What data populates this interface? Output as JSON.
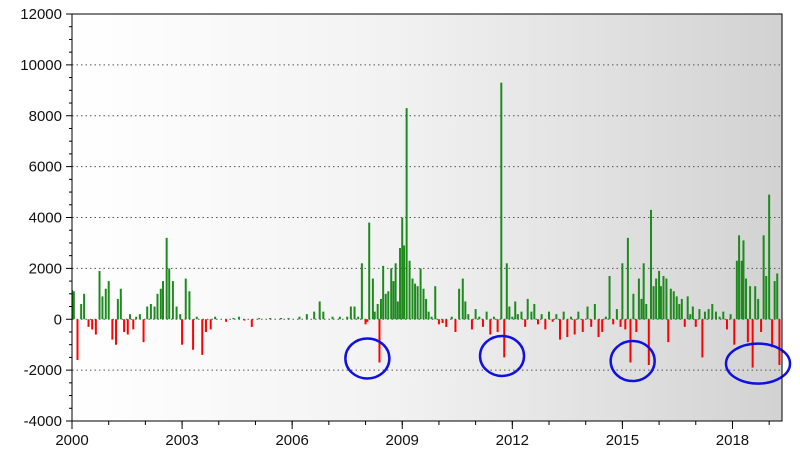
{
  "chart_data": {
    "type": "bar",
    "title": "",
    "xlabel": "",
    "ylabel": "",
    "xlim": [
      2000.0,
      2019.35
    ],
    "ylim": [
      -4000,
      12000
    ],
    "x_ticks": [
      2000,
      2003,
      2006,
      2009,
      2012,
      2015,
      2018
    ],
    "x_tick_labels": [
      "2000",
      "2003",
      "2006",
      "2009",
      "2012",
      "2015",
      "2018"
    ],
    "y_ticks": [
      -4000,
      -2000,
      0,
      2000,
      4000,
      6000,
      8000,
      10000,
      12000
    ],
    "y_tick_labels": [
      "-4000",
      "-2000",
      "0",
      "2000",
      "4000",
      "6000",
      "8000",
      "10000",
      "12000"
    ],
    "grid": "horizontal dotted",
    "legend": "none",
    "colors": {
      "positive": "#1e8a1e",
      "negative": "#ff0000",
      "annotation": "#1010e0",
      "background_left": "#ffffff",
      "background_right": "#d2d2d2"
    },
    "series": [
      {
        "values": [
          [
            2000.0,
            1150
          ],
          [
            2000.05,
            1100
          ],
          [
            2000.15,
            -1600
          ],
          [
            2000.25,
            600
          ],
          [
            2000.33,
            1000
          ],
          [
            2000.45,
            -300
          ],
          [
            2000.55,
            -400
          ],
          [
            2000.65,
            -600
          ],
          [
            2000.75,
            1900
          ],
          [
            2000.83,
            900
          ],
          [
            2000.92,
            1200
          ],
          [
            2001.0,
            1500
          ],
          [
            2001.1,
            -800
          ],
          [
            2001.2,
            -1000
          ],
          [
            2001.25,
            800
          ],
          [
            2001.33,
            1200
          ],
          [
            2001.42,
            -500
          ],
          [
            2001.52,
            -600
          ],
          [
            2001.58,
            200
          ],
          [
            2001.67,
            -400
          ],
          [
            2001.75,
            100
          ],
          [
            2001.85,
            200
          ],
          [
            2001.95,
            -900
          ],
          [
            2002.05,
            500
          ],
          [
            2002.15,
            600
          ],
          [
            2002.25,
            500
          ],
          [
            2002.33,
            1000
          ],
          [
            2002.42,
            1200
          ],
          [
            2002.48,
            1500
          ],
          [
            2002.58,
            3200
          ],
          [
            2002.65,
            2000
          ],
          [
            2002.75,
            1500
          ],
          [
            2002.85,
            500
          ],
          [
            2002.95,
            200
          ],
          [
            2003.0,
            -1000
          ],
          [
            2003.1,
            1600
          ],
          [
            2003.2,
            1100
          ],
          [
            2003.3,
            -1200
          ],
          [
            2003.4,
            100
          ],
          [
            2003.55,
            -1400
          ],
          [
            2003.65,
            -500
          ],
          [
            2003.78,
            -400
          ],
          [
            2003.9,
            100
          ],
          [
            2004.2,
            -100
          ],
          [
            2004.4,
            50
          ],
          [
            2004.55,
            100
          ],
          [
            2004.7,
            -50
          ],
          [
            2004.9,
            -300
          ],
          [
            2005.1,
            50
          ],
          [
            2005.4,
            50
          ],
          [
            2005.7,
            50
          ],
          [
            2005.9,
            50
          ],
          [
            2006.2,
            100
          ],
          [
            2006.4,
            200
          ],
          [
            2006.6,
            300
          ],
          [
            2006.75,
            700
          ],
          [
            2006.85,
            300
          ],
          [
            2007.1,
            100
          ],
          [
            2007.3,
            100
          ],
          [
            2007.5,
            100
          ],
          [
            2007.6,
            500
          ],
          [
            2007.7,
            500
          ],
          [
            2007.8,
            100
          ],
          [
            2007.9,
            2200
          ],
          [
            2008.0,
            -200
          ],
          [
            2008.05,
            -100
          ],
          [
            2008.1,
            3800
          ],
          [
            2008.2,
            1600
          ],
          [
            2008.25,
            300
          ],
          [
            2008.33,
            600
          ],
          [
            2008.38,
            -1700
          ],
          [
            2008.42,
            800
          ],
          [
            2008.48,
            2100
          ],
          [
            2008.55,
            1000
          ],
          [
            2008.62,
            1100
          ],
          [
            2008.7,
            2000
          ],
          [
            2008.76,
            1500
          ],
          [
            2008.82,
            2200
          ],
          [
            2008.88,
            700
          ],
          [
            2008.94,
            2800
          ],
          [
            2009.0,
            4000
          ],
          [
            2009.05,
            2900
          ],
          [
            2009.12,
            8300
          ],
          [
            2009.2,
            2300
          ],
          [
            2009.28,
            1600
          ],
          [
            2009.35,
            1400
          ],
          [
            2009.42,
            1300
          ],
          [
            2009.5,
            2000
          ],
          [
            2009.58,
            1200
          ],
          [
            2009.65,
            800
          ],
          [
            2009.72,
            300
          ],
          [
            2009.8,
            100
          ],
          [
            2009.9,
            1300
          ],
          [
            2010.0,
            -200
          ],
          [
            2010.1,
            -150
          ],
          [
            2010.2,
            -300
          ],
          [
            2010.35,
            100
          ],
          [
            2010.45,
            -500
          ],
          [
            2010.55,
            1200
          ],
          [
            2010.65,
            1600
          ],
          [
            2010.72,
            700
          ],
          [
            2010.8,
            200
          ],
          [
            2010.9,
            -400
          ],
          [
            2011.0,
            400
          ],
          [
            2011.1,
            100
          ],
          [
            2011.2,
            -300
          ],
          [
            2011.3,
            300
          ],
          [
            2011.4,
            -600
          ],
          [
            2011.5,
            100
          ],
          [
            2011.6,
            -500
          ],
          [
            2011.7,
            9300
          ],
          [
            2011.78,
            -1500
          ],
          [
            2011.85,
            2200
          ],
          [
            2011.92,
            500
          ],
          [
            2012.0,
            100
          ],
          [
            2012.08,
            700
          ],
          [
            2012.15,
            200
          ],
          [
            2012.25,
            300
          ],
          [
            2012.35,
            -300
          ],
          [
            2012.42,
            800
          ],
          [
            2012.52,
            300
          ],
          [
            2012.6,
            600
          ],
          [
            2012.7,
            -200
          ],
          [
            2012.8,
            200
          ],
          [
            2012.9,
            -400
          ],
          [
            2013.0,
            300
          ],
          [
            2013.1,
            -100
          ],
          [
            2013.2,
            200
          ],
          [
            2013.3,
            -800
          ],
          [
            2013.4,
            300
          ],
          [
            2013.5,
            -700
          ],
          [
            2013.6,
            100
          ],
          [
            2013.7,
            -600
          ],
          [
            2013.8,
            300
          ],
          [
            2013.92,
            -500
          ],
          [
            2014.05,
            500
          ],
          [
            2014.15,
            -300
          ],
          [
            2014.25,
            600
          ],
          [
            2014.35,
            -700
          ],
          [
            2014.45,
            -500
          ],
          [
            2014.55,
            100
          ],
          [
            2014.65,
            1700
          ],
          [
            2014.75,
            -200
          ],
          [
            2014.85,
            400
          ],
          [
            2014.95,
            -300
          ],
          [
            2015.0,
            2200
          ],
          [
            2015.08,
            -400
          ],
          [
            2015.15,
            3200
          ],
          [
            2015.22,
            -1700
          ],
          [
            2015.3,
            1000
          ],
          [
            2015.38,
            -500
          ],
          [
            2015.45,
            1600
          ],
          [
            2015.52,
            800
          ],
          [
            2015.58,
            2200
          ],
          [
            2015.65,
            600
          ],
          [
            2015.72,
            -1800
          ],
          [
            2015.78,
            4300
          ],
          [
            2015.85,
            1300
          ],
          [
            2015.92,
            1600
          ],
          [
            2016.0,
            1900
          ],
          [
            2016.05,
            1300
          ],
          [
            2016.12,
            1700
          ],
          [
            2016.2,
            1600
          ],
          [
            2016.25,
            -900
          ],
          [
            2016.32,
            1200
          ],
          [
            2016.4,
            1100
          ],
          [
            2016.48,
            900
          ],
          [
            2016.55,
            600
          ],
          [
            2016.62,
            800
          ],
          [
            2016.7,
            -300
          ],
          [
            2016.78,
            900
          ],
          [
            2016.85,
            200
          ],
          [
            2016.92,
            500
          ],
          [
            2017.0,
            -300
          ],
          [
            2017.1,
            400
          ],
          [
            2017.18,
            -1500
          ],
          [
            2017.25,
            300
          ],
          [
            2017.35,
            400
          ],
          [
            2017.45,
            600
          ],
          [
            2017.55,
            300
          ],
          [
            2017.65,
            100
          ],
          [
            2017.75,
            300
          ],
          [
            2017.85,
            -400
          ],
          [
            2017.95,
            200
          ],
          [
            2018.05,
            -1000
          ],
          [
            2018.12,
            2300
          ],
          [
            2018.18,
            3300
          ],
          [
            2018.25,
            2300
          ],
          [
            2018.3,
            3100
          ],
          [
            2018.37,
            1600
          ],
          [
            2018.42,
            -900
          ],
          [
            2018.48,
            1300
          ],
          [
            2018.55,
            -1900
          ],
          [
            2018.62,
            1300
          ],
          [
            2018.7,
            800
          ],
          [
            2018.78,
            -500
          ],
          [
            2018.85,
            3300
          ],
          [
            2018.92,
            1700
          ],
          [
            2019.0,
            4900
          ],
          [
            2019.08,
            -1100
          ],
          [
            2019.15,
            1500
          ],
          [
            2019.22,
            1800
          ],
          [
            2019.28,
            -1800
          ]
        ]
      }
    ],
    "annotations": [
      {
        "type": "circle",
        "x": 2008.05,
        "y": -1700
      },
      {
        "type": "circle",
        "x": 2011.72,
        "y": -1600
      },
      {
        "type": "circle",
        "x": 2015.28,
        "y": -1800
      },
      {
        "type": "circle",
        "x": 2019.0,
        "y": -1900
      }
    ]
  }
}
